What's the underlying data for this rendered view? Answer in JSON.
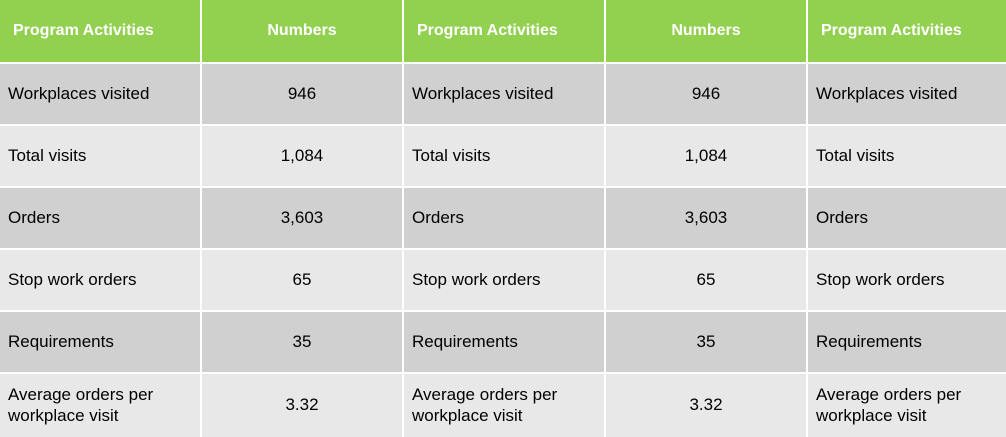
{
  "colors": {
    "header_bg": "#92d050",
    "header_text": "#ffffff",
    "row_dark": "#d0d0d0",
    "row_light": "#e8e8e8"
  },
  "headers": [
    "Program Activities",
    "Numbers",
    "Program Activities",
    "Numbers",
    "Program Activities"
  ],
  "rows": [
    [
      "Workplaces visited",
      "946",
      "Workplaces visited",
      "946",
      "Workplaces visited"
    ],
    [
      "Total visits",
      "1,084",
      "Total visits",
      "1,084",
      "Total visits"
    ],
    [
      "Orders",
      "3,603",
      "Orders",
      "3,603",
      "Orders"
    ],
    [
      "Stop work orders",
      "65",
      "Stop work orders",
      "65",
      "Stop work orders"
    ],
    [
      "Requirements",
      "35",
      "Requirements",
      "35",
      "Requirements"
    ],
    [
      "Average orders per workplace visit",
      "3.32",
      "Average orders per workplace visit",
      "3.32",
      "Average orders per workplace visit"
    ]
  ]
}
